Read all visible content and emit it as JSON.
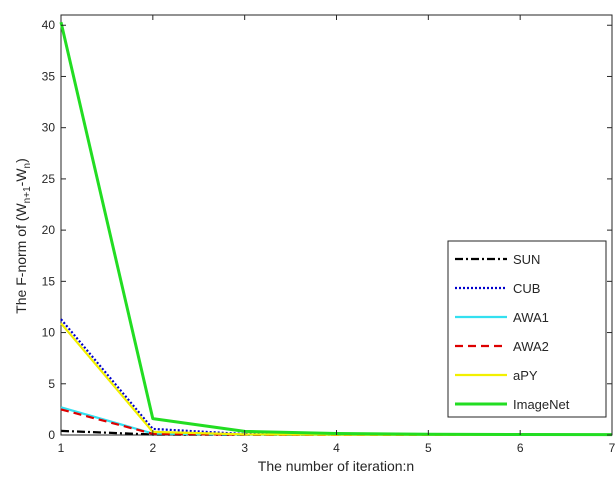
{
  "chart_data": {
    "type": "line",
    "xlabel": "The number of iteration:n",
    "ylabel_parts": [
      "The F-norm of (W",
      "n+1",
      "-W",
      "n",
      ")"
    ],
    "xlim": [
      1,
      7
    ],
    "ylim": [
      0,
      41
    ],
    "xticks": [
      1,
      2,
      3,
      4,
      5,
      6,
      7
    ],
    "yticks": [
      0,
      5,
      10,
      15,
      20,
      25,
      30,
      35,
      40
    ],
    "grid": false,
    "legend_position": "right",
    "x": [
      1,
      2,
      3,
      4,
      5,
      6,
      7
    ],
    "series": [
      {
        "name": "SUN",
        "color": "#000000",
        "dash": "dash-dot",
        "values": [
          0.4,
          0.05,
          0.02,
          0.01,
          0.01,
          0.01,
          0.01
        ]
      },
      {
        "name": "CUB",
        "color": "#0000cc",
        "dash": "dotted",
        "values": [
          11.3,
          0.6,
          0.1,
          0.05,
          0.03,
          0.02,
          0.02
        ]
      },
      {
        "name": "AWA1",
        "color": "#33e0f0",
        "dash": "solid",
        "values": [
          2.7,
          0.15,
          0.04,
          0.02,
          0.01,
          0.01,
          0.01
        ]
      },
      {
        "name": "AWA2",
        "color": "#dd0000",
        "dash": "dashed",
        "values": [
          2.5,
          0.12,
          0.03,
          0.02,
          0.01,
          0.01,
          0.01
        ]
      },
      {
        "name": "aPY",
        "color": "#f2f000",
        "dash": "solid",
        "values": [
          10.9,
          0.3,
          0.06,
          0.03,
          0.02,
          0.01,
          0.01
        ]
      },
      {
        "name": "ImageNet",
        "color": "#22dd22",
        "dash": "solid",
        "values": [
          40.3,
          1.6,
          0.35,
          0.15,
          0.08,
          0.05,
          0.04
        ]
      }
    ]
  }
}
